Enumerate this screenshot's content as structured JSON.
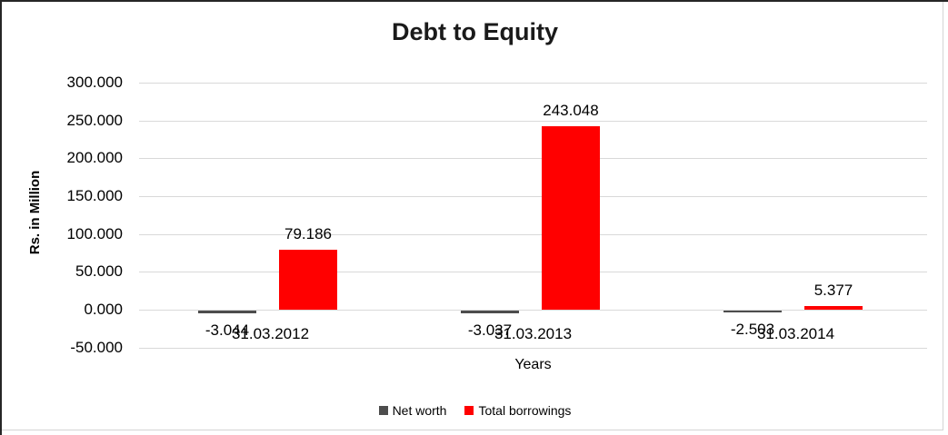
{
  "chart": {
    "title": "Debt to Equity",
    "y_axis_title": "Rs. in Million",
    "x_axis_title": "Years"
  },
  "chart_data": {
    "type": "bar",
    "title": "Debt to Equity",
    "xlabel": "Years",
    "ylabel": "Rs. in Million",
    "categories": [
      "31.03.2012",
      "31.03.2013",
      "31.03.2014"
    ],
    "series": [
      {
        "name": "Net worth",
        "color": "#4d4d4d",
        "values": [
          -3.044,
          -3.037,
          -2.503
        ],
        "data_labels": [
          "-3.044",
          "-3.037",
          "-2.503"
        ]
      },
      {
        "name": "Total borrowings",
        "color": "#ff0000",
        "values": [
          79.186,
          243.048,
          5.377
        ],
        "data_labels": [
          "79.186",
          "243.048",
          "5.377"
        ]
      }
    ],
    "ylim": [
      -50,
      300
    ],
    "yticks": [
      300,
      250,
      200,
      150,
      100,
      50,
      0,
      -50
    ],
    "ytick_labels": [
      "300.000",
      "250.000",
      "200.000",
      "150.000",
      "100.000",
      "50.000",
      "0.000",
      "-50.000"
    ],
    "grid": true,
    "gridline_color": "#d9d9d9",
    "legend_position": "bottom"
  }
}
